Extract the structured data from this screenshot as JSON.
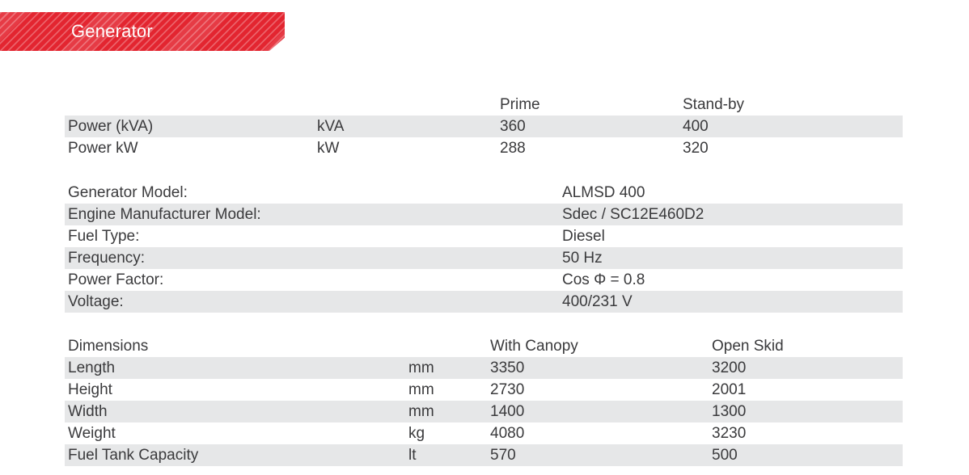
{
  "banner": {
    "title": "Generator"
  },
  "colors": {
    "accent_red": "#e32530",
    "row_band": "#e6e7e8",
    "text": "#3a3a3c",
    "banner_text": "#ffffff"
  },
  "power_table": {
    "columns": {
      "prime": "Prime",
      "standby": "Stand-by"
    },
    "rows": [
      {
        "label": "Power (kVA)",
        "unit": "kVA",
        "prime": "360",
        "standby": "400"
      },
      {
        "label": "Power kW",
        "unit": "kW",
        "prime": "288",
        "standby": "320"
      }
    ]
  },
  "specs": {
    "rows": [
      {
        "label": "Generator Model:",
        "value": "ALMSD 400"
      },
      {
        "label": "Engine Manufacturer Model:",
        "value": "Sdec / SC12E460D2"
      },
      {
        "label": "Fuel Type:",
        "value": "Diesel"
      },
      {
        "label": "Frequency:",
        "value": "50 Hz"
      },
      {
        "label": "Power Factor:",
        "value": "Cos Φ = 0.8"
      },
      {
        "label": "Voltage:",
        "value": "400/231 V"
      }
    ]
  },
  "dimensions_table": {
    "title": "Dimensions",
    "columns": {
      "canopy": "With Canopy",
      "skid": "Open Skid"
    },
    "rows": [
      {
        "label": "Length",
        "unit": "mm",
        "canopy": "3350",
        "skid": "3200"
      },
      {
        "label": "Height",
        "unit": "mm",
        "canopy": "2730",
        "skid": "2001"
      },
      {
        "label": "Width",
        "unit": "mm",
        "canopy": "1400",
        "skid": "1300"
      },
      {
        "label": "Weight",
        "unit": "kg",
        "canopy": "4080",
        "skid": "3230"
      },
      {
        "label": "Fuel Tank Capacity",
        "unit": "lt",
        "canopy": "570",
        "skid": "500"
      }
    ]
  }
}
